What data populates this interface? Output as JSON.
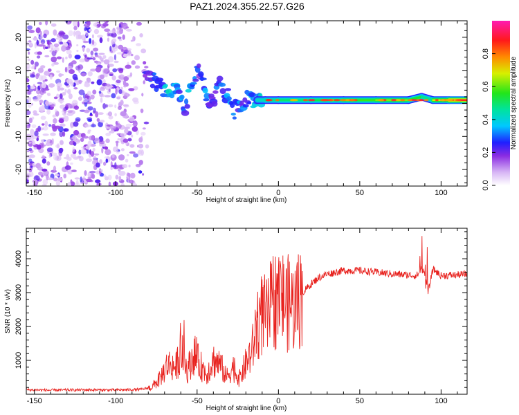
{
  "title": "PAZ1.2024.355.22.57.G26",
  "colors": {
    "snr_line": "#e8231f",
    "spectrogram_noise": "#8a2be2",
    "track_core": "#e8231f"
  },
  "chart_data": [
    {
      "type": "heatmap",
      "xlabel": "Height of straight line (km)",
      "ylabel": "Frequency (Hz)",
      "xlim": [
        -155,
        116
      ],
      "ylim": [
        -25,
        25
      ],
      "x_ticks": [
        -150,
        -100,
        -50,
        0,
        50,
        100
      ],
      "y_ticks": [
        -20,
        -10,
        0,
        10,
        20
      ],
      "colorbar": {
        "label": "Normalized spectral amplitude",
        "range": [
          0,
          1
        ],
        "ticks": [
          "0.0",
          "0.2",
          "0.4",
          "0.6",
          "0.8"
        ],
        "colormap": "white-purple-blue-cyan-green-yellow-orange-red-magenta"
      },
      "noise_region_x": [
        -155,
        -80
      ],
      "signal_track": [
        {
          "x": -82,
          "y": 10,
          "a": 0.25
        },
        {
          "x": -78,
          "y": 8,
          "a": 0.3
        },
        {
          "x": -72,
          "y": 5,
          "a": 0.35
        },
        {
          "x": -68,
          "y": 3,
          "a": 0.45
        },
        {
          "x": -63,
          "y": 4,
          "a": 0.4
        },
        {
          "x": -58,
          "y": -2,
          "a": 0.3
        },
        {
          "x": -54,
          "y": 4,
          "a": 0.4
        },
        {
          "x": -49,
          "y": 12,
          "a": 0.25
        },
        {
          "x": -45,
          "y": 3,
          "a": 0.35
        },
        {
          "x": -40,
          "y": -1,
          "a": 0.3
        },
        {
          "x": -36,
          "y": 6,
          "a": 0.3
        },
        {
          "x": -31,
          "y": 2,
          "a": 0.35
        },
        {
          "x": -27,
          "y": -2,
          "a": 0.35
        },
        {
          "x": -22,
          "y": 0,
          "a": 0.3
        },
        {
          "x": -18,
          "y": 2,
          "a": 0.35
        },
        {
          "x": -13,
          "y": 1,
          "a": 0.4
        },
        {
          "x": -8,
          "y": 1,
          "a": 0.45
        },
        {
          "x": 0,
          "y": 1,
          "a": 0.5
        },
        {
          "x": 20,
          "y": 1,
          "a": 0.5
        },
        {
          "x": 40,
          "y": 1,
          "a": 0.55
        },
        {
          "x": 60,
          "y": 1,
          "a": 0.6
        },
        {
          "x": 80,
          "y": 1,
          "a": 0.65
        },
        {
          "x": 88,
          "y": 2,
          "a": 0.45
        },
        {
          "x": 95,
          "y": 1,
          "a": 0.5
        },
        {
          "x": 105,
          "y": 1,
          "a": 0.85
        },
        {
          "x": 116,
          "y": 1,
          "a": 0.9
        }
      ]
    },
    {
      "type": "line",
      "xlabel": "Height of straight line (km)",
      "ylabel": "SNR (10 * v/v)",
      "xlim": [
        -155,
        116
      ],
      "ylim": [
        0,
        4900
      ],
      "x_ticks": [
        -150,
        -100,
        -50,
        0,
        50,
        100
      ],
      "y_ticks": [
        1000,
        2000,
        3000,
        4000
      ],
      "series": [
        {
          "x": [
            -155,
            -140,
            -120,
            -100,
            -85,
            -78,
            -73,
            -68,
            -63,
            -60,
            -56,
            -52,
            -48,
            -44,
            -40,
            -36,
            -32,
            -28,
            -24,
            -20,
            -16,
            -13,
            -10,
            -7,
            -4,
            0,
            5,
            10,
            15,
            20,
            25,
            30,
            40,
            50,
            60,
            70,
            80,
            85,
            88,
            90,
            92,
            95,
            100,
            110,
            116
          ],
          "y": [
            130,
            120,
            130,
            125,
            140,
            200,
            450,
            900,
            800,
            1300,
            700,
            1200,
            850,
            600,
            1000,
            900,
            500,
            800,
            450,
            900,
            1300,
            2100,
            2400,
            2200,
            2700,
            2900,
            2700,
            2600,
            3000,
            3250,
            3450,
            3550,
            3650,
            3650,
            3600,
            3550,
            3520,
            3500,
            3700,
            3600,
            3000,
            3700,
            3500,
            3520,
            3550
          ]
        }
      ]
    }
  ]
}
